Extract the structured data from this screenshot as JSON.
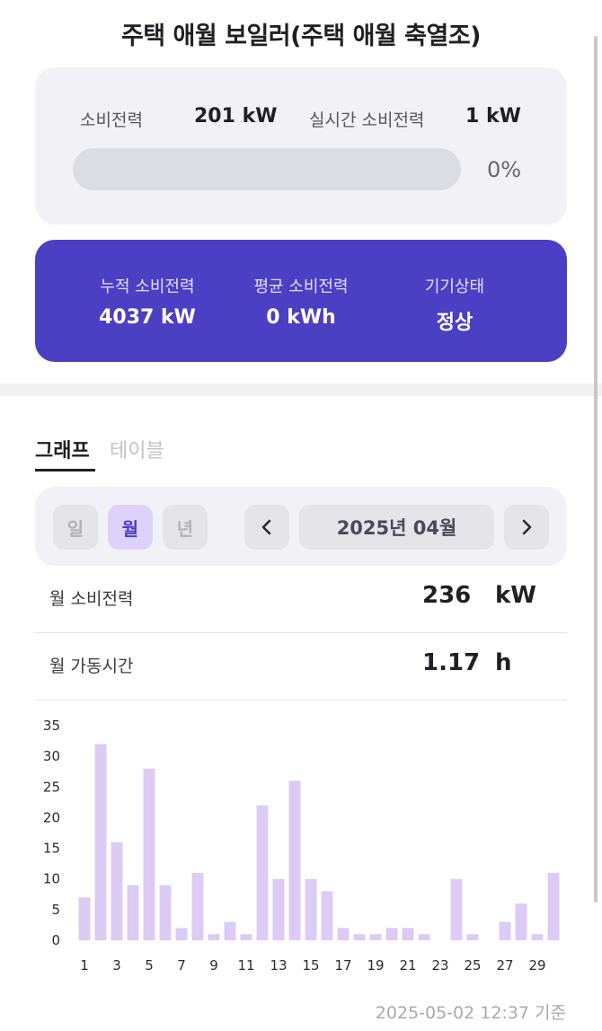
{
  "title": "주택 애월 보일러(주택 애월 축열조)",
  "usage": {
    "consumption_label": "소비전력",
    "consumption_value": "201 kW",
    "realtime_label": "실시간 소비전력",
    "realtime_value": "1 kW",
    "progress_percent": 0,
    "progress_text": "0%"
  },
  "stats": {
    "cumulative_label": "누적 소비전력",
    "cumulative_value": "4037 kW",
    "average_label": "평균 소비전력",
    "average_value": "0 kWh",
    "status_label": "기기상태",
    "status_value": "정상"
  },
  "tabs": {
    "graph": "그래프",
    "table": "테이블"
  },
  "period": {
    "day": "일",
    "month": "월",
    "year": "년",
    "selected": "월",
    "prev_icon": "chevron-left-icon",
    "next_icon": "chevron-right-icon",
    "current": "2025년 04월"
  },
  "monthly": {
    "consumption_label": "월 소비전력",
    "consumption_value": "236",
    "consumption_unit": "kW",
    "runtime_label": "월 가동시간",
    "runtime_value": "1.17",
    "runtime_unit": "h"
  },
  "chart_data": {
    "type": "bar",
    "categories": [
      "1",
      "2",
      "3",
      "4",
      "5",
      "6",
      "7",
      "8",
      "9",
      "10",
      "11",
      "12",
      "13",
      "14",
      "15",
      "16",
      "17",
      "18",
      "19",
      "20",
      "21",
      "22",
      "23",
      "24",
      "25",
      "26",
      "27",
      "28",
      "29",
      "30"
    ],
    "values": [
      7,
      32,
      16,
      9,
      28,
      9,
      2,
      11,
      1,
      3,
      1,
      22,
      10,
      26,
      10,
      8,
      2,
      1,
      1,
      2,
      2,
      1,
      0,
      10,
      1,
      0,
      3,
      6,
      1,
      11
    ],
    "y_ticks": [
      "0",
      "5",
      "10",
      "15",
      "20",
      "25",
      "30",
      "35"
    ],
    "x_tick_labels": [
      "1",
      "3",
      "5",
      "7",
      "9",
      "11",
      "13",
      "15",
      "17",
      "19",
      "21",
      "23",
      "25",
      "27",
      "29"
    ],
    "ylim": [
      0,
      35
    ],
    "grid": false,
    "bar_color": "#dccbf3"
  },
  "footnote": "2025-05-02 12:37 기준",
  "colors": {
    "accent": "#4b3fc4",
    "card_bg": "#f2f2f6",
    "bar": "#dccbf3"
  }
}
